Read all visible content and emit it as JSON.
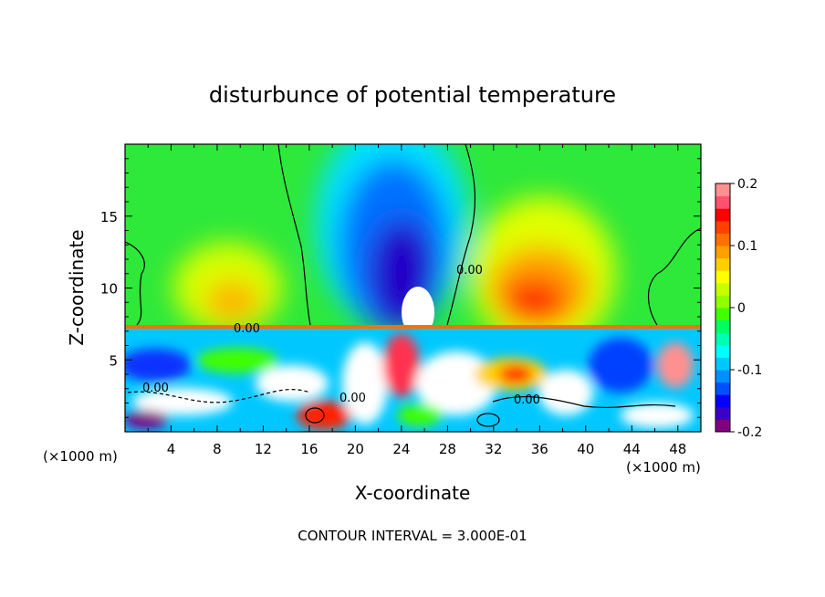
{
  "chart_data": {
    "type": "heatmap",
    "title": "disturbunce of potential temperature",
    "xlabel": "X-coordinate",
    "ylabel": "Z-coordinate",
    "x_unit_left": "(×1000 m)",
    "x_unit_right": "(×1000 m)",
    "footer": "CONTOUR INTERVAL = 3.000E-01",
    "xlim": [
      0,
      50
    ],
    "ylim": [
      0,
      20
    ],
    "xticks": [
      "4",
      "8",
      "12",
      "16",
      "20",
      "24",
      "28",
      "32",
      "36",
      "40",
      "44",
      "48"
    ],
    "yticks": [
      "5",
      "10",
      "15"
    ],
    "contour_labels": [
      "0.00",
      "0.00",
      "0.00",
      "0.00",
      "0.00"
    ],
    "colorbar": {
      "range": [
        -0.2,
        0.2
      ],
      "ticks": [
        "0.2",
        "0.1",
        "0",
        "-0.1",
        "-0.2"
      ],
      "colors": [
        "#800080",
        "#3a00c8",
        "#0000ff",
        "#0050ff",
        "#0090ff",
        "#00c8ff",
        "#00ffff",
        "#00ffb0",
        "#00ff60",
        "#40ff00",
        "#90ff00",
        "#c8ff00",
        "#ffff00",
        "#ffd000",
        "#ffa000",
        "#ff7000",
        "#ff4000",
        "#ff0000",
        "#ff5070",
        "#ff9090"
      ]
    },
    "field": {
      "background": 0.0,
      "features": [
        {
          "kind": "cold_column",
          "x": 24,
          "z": 12.5,
          "amplitude": -0.2
        },
        {
          "kind": "warm_lobe",
          "x": 36,
          "z": 11,
          "amplitude": 0.16
        },
        {
          "kind": "warm_lobe",
          "x": 9,
          "z": 10.5,
          "amplitude": 0.09
        },
        {
          "kind": "cold_patch",
          "x": 2,
          "z": 3,
          "amplitude": -0.15
        },
        {
          "kind": "cold_patch",
          "x": 43,
          "z": 2,
          "amplitude": -0.15
        },
        {
          "kind": "mixed_layer_top",
          "z": 7.3
        }
      ]
    }
  }
}
